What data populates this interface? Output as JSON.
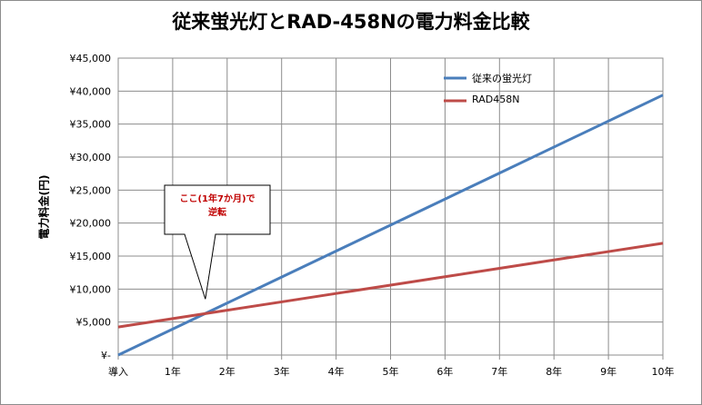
{
  "chart_data": {
    "type": "line",
    "title": "従来蛍光灯とRAD-458Nの電力料金比較",
    "xlabel": "",
    "ylabel": "電力料金(円)",
    "categories": [
      "導入",
      "1年",
      "2年",
      "3年",
      "4年",
      "5年",
      "6年",
      "7年",
      "8年",
      "9年",
      "10年"
    ],
    "yticks": [
      "¥-",
      "¥5,000",
      "¥10,000",
      "¥15,000",
      "¥20,000",
      "¥25,000",
      "¥30,000",
      "¥35,000",
      "¥40,000",
      "¥45,000"
    ],
    "ylim": [
      0,
      45000
    ],
    "grid": true,
    "legend_position": "top-right",
    "series": [
      {
        "name": "従来の蛍光灯",
        "color": "#4a7ebb",
        "values": [
          0,
          3940,
          7880,
          11820,
          15760,
          19700,
          23640,
          27580,
          31520,
          35460,
          39400
        ]
      },
      {
        "name": "RAD458N",
        "color": "#be4b48",
        "values": [
          4250,
          5520,
          6790,
          8060,
          9330,
          10600,
          11870,
          13140,
          14410,
          15680,
          16950
        ]
      }
    ],
    "annotation": {
      "line1": "ここ(1年7か月)で",
      "line2": "逆転",
      "color": "#c00000"
    }
  }
}
